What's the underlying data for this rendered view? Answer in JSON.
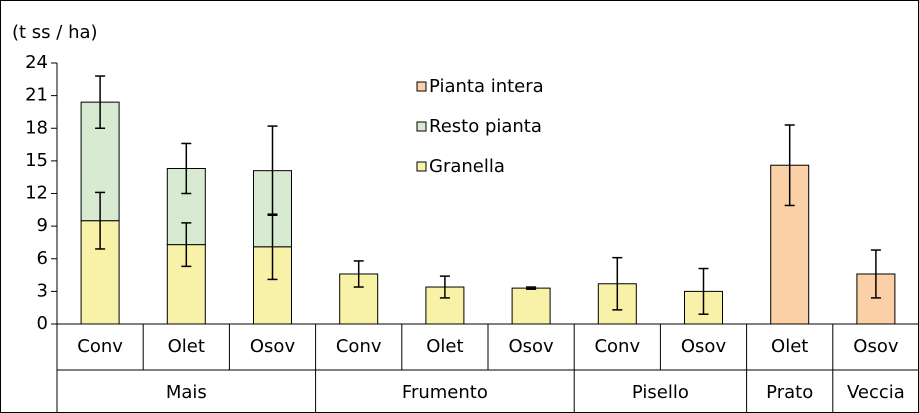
{
  "chart_data": {
    "type": "stacked-bar",
    "y_label": "(t ss / ha)",
    "groups": [
      {
        "name": "Mais",
        "categories": [
          "Conv",
          "Olet",
          "Osov"
        ]
      },
      {
        "name": "Frumento",
        "categories": [
          "Conv",
          "Olet",
          "Osov"
        ]
      },
      {
        "name": "Pisello",
        "categories": [
          "Conv",
          "Osov"
        ]
      },
      {
        "name": "Prato",
        "categories": [
          "Olet"
        ]
      },
      {
        "name": "Veccia",
        "categories": [
          "Osov"
        ]
      }
    ],
    "series": [
      {
        "name": "Granella",
        "color": "#f8f2a8",
        "values": [
          9.5,
          7.3,
          7.1,
          4.6,
          3.4,
          3.3,
          3.7,
          3.0,
          null,
          null
        ],
        "errors": [
          2.6,
          2.0,
          3.0,
          1.2,
          1.0,
          0.1,
          2.4,
          2.1,
          null,
          null
        ]
      },
      {
        "name": "Resto pianta",
        "color": "#d9ead3",
        "values": [
          10.9,
          7.0,
          7.0,
          null,
          null,
          null,
          null,
          null,
          null,
          null
        ],
        "errors": [
          2.4,
          2.3,
          4.1,
          null,
          null,
          null,
          null,
          null,
          null,
          null
        ]
      },
      {
        "name": "Pianta intera",
        "color": "#fbd0a6",
        "values": [
          null,
          null,
          null,
          null,
          null,
          null,
          null,
          null,
          14.6,
          4.6
        ],
        "errors": [
          null,
          null,
          null,
          null,
          null,
          null,
          null,
          null,
          3.7,
          2.2
        ]
      }
    ],
    "ylim": [
      0,
      24
    ],
    "yticks": [
      0,
      3,
      6,
      9,
      12,
      15,
      18,
      21,
      24
    ]
  }
}
